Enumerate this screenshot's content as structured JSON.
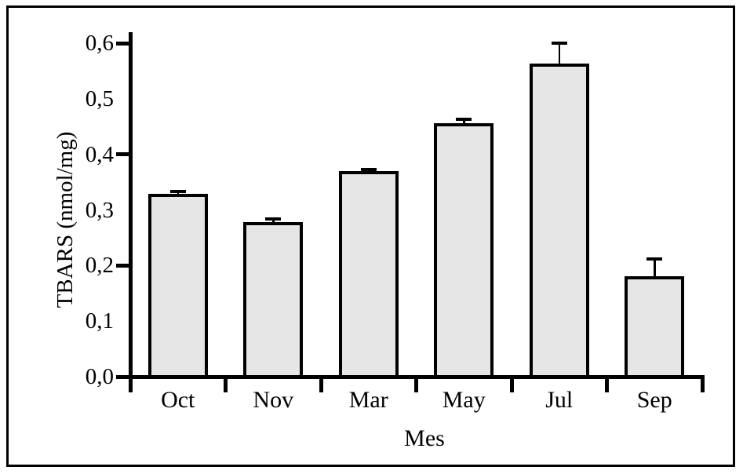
{
  "figure": {
    "description": "Bar chart with error bars inside a black rectangular frame",
    "background_color": "#ffffff",
    "frame_color": "#000000"
  },
  "chart_data": {
    "type": "bar",
    "title": "",
    "xlabel": "Mes",
    "ylabel": "TBARS (nmol/mg)",
    "categories": [
      "Oct",
      "Nov",
      "Mar",
      "May",
      "Jul",
      "Sep"
    ],
    "values": [
      0.325,
      0.275,
      0.367,
      0.452,
      0.56,
      0.177
    ],
    "errors": [
      0.008,
      0.009,
      0.006,
      0.011,
      0.04,
      0.035
    ],
    "error_bars": "upper-only",
    "ylim": [
      0.0,
      0.6
    ],
    "y_tick_values": [
      0.0,
      0.1,
      0.2,
      0.3,
      0.4,
      0.5,
      0.6
    ],
    "y_tick_labels": [
      "0,0",
      "0,1",
      "0,2",
      "0,3",
      "0,4",
      "0,5",
      "0,6"
    ],
    "y_major_tick_values": [
      0.0,
      0.2,
      0.4,
      0.6
    ],
    "decimal_separator": ",",
    "grid": false,
    "legend": false,
    "bar_fill_color": "#e6e6e6",
    "bar_stroke_color": "#000000",
    "axis_color": "#000000",
    "text_color": "#000000"
  }
}
